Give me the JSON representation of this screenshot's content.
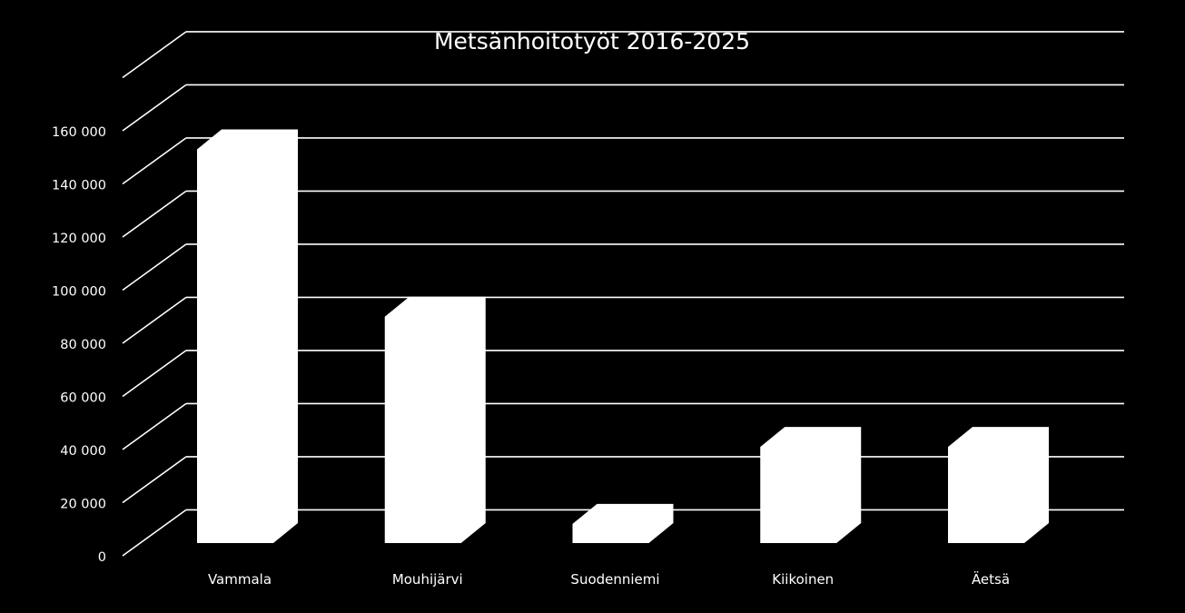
{
  "chart_data": {
    "type": "bar",
    "title": "Metsänhoitotyöt 2016-2025",
    "xlabel": "",
    "ylabel": "",
    "categories": [
      "Vammala",
      "Mouhijärvi",
      "Suodenniemi",
      "Kiikoinen",
      "Äetsä"
    ],
    "values": [
      153000,
      90000,
      12000,
      41000,
      41000
    ],
    "ylim": [
      0,
      180000
    ],
    "yticks": [
      0,
      20000,
      40000,
      60000,
      80000,
      100000,
      120000,
      140000,
      160000
    ],
    "ytick_labels": [
      "0",
      "20 000",
      "40 000",
      "60 000",
      "80 000",
      "100 000",
      "120 000",
      "140 000",
      "160 000"
    ],
    "grid": true,
    "legend": "none",
    "style": "3d-column",
    "colors": {
      "background": "#000000",
      "bar": "#ffffff",
      "grid": "#ffffff",
      "text": "#ffffff"
    }
  }
}
